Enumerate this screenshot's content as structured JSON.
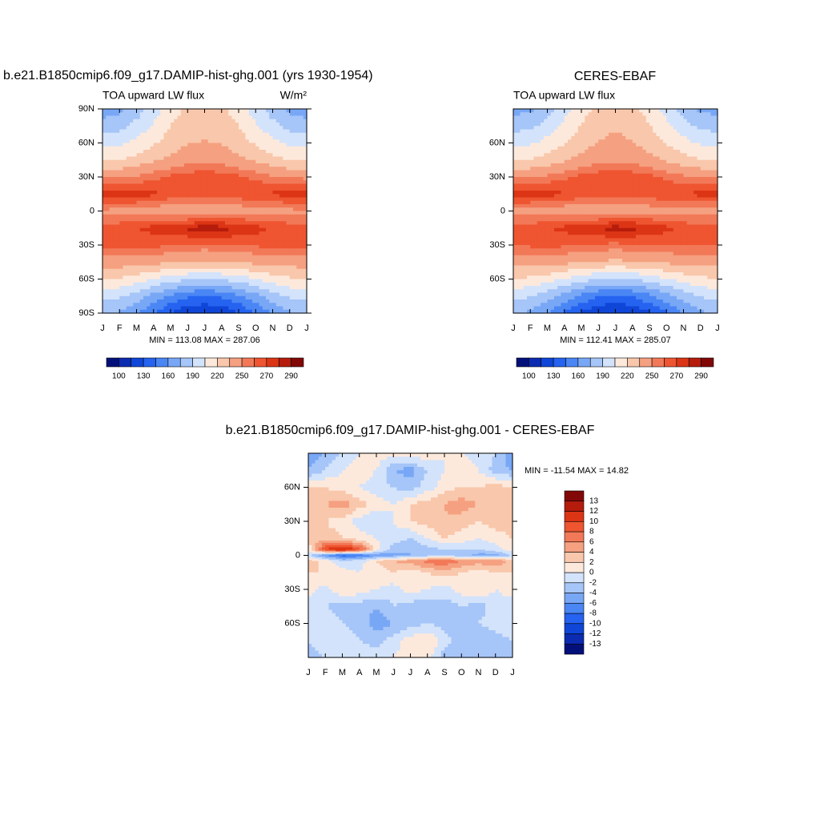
{
  "chart_data": [
    {
      "type": "contour",
      "title": "b.e21.B1850cmip6.f09_g17.DAMIP-hist-ghg.001 (yrs 1930-1954)",
      "subtitle": "TOA upward LW flux",
      "units": "W/m²",
      "stats": "MIN = 113.08 MAX = 287.06",
      "xlim": [
        0,
        12
      ],
      "x": [
        0,
        1,
        2,
        3,
        4,
        5,
        6,
        7,
        8,
        9,
        10,
        11,
        12
      ],
      "xticks": [
        {
          "value": 0,
          "label": "J"
        },
        {
          "value": 1,
          "label": "F"
        },
        {
          "value": 2,
          "label": "M"
        },
        {
          "value": 3,
          "label": "A"
        },
        {
          "value": 4,
          "label": "M"
        },
        {
          "value": 5,
          "label": "J"
        },
        {
          "value": 6,
          "label": "J"
        },
        {
          "value": 7,
          "label": "A"
        },
        {
          "value": 8,
          "label": "S"
        },
        {
          "value": 9,
          "label": "O"
        },
        {
          "value": 10,
          "label": "N"
        },
        {
          "value": 11,
          "label": "D"
        },
        {
          "value": 12,
          "label": "J"
        }
      ],
      "ylim": [
        -90,
        90
      ],
      "yticks": [
        {
          "value": 90,
          "label": "90N"
        },
        {
          "value": 60,
          "label": "60N"
        },
        {
          "value": 30,
          "label": "30N"
        },
        0,
        {
          "value": -30,
          "label": "30S"
        },
        {
          "value": -60,
          "label": "60S"
        },
        {
          "value": -90,
          "label": "90S"
        }
      ],
      "y": [
        90,
        75,
        60,
        45,
        30,
        15,
        0,
        -15,
        -30,
        -45,
        -60,
        -75,
        -90
      ],
      "z": [
        [
          167,
          171,
          182,
          197,
          212,
          223,
          227,
          223,
          212,
          197,
          182,
          171,
          167
        ],
        [
          182,
          185,
          195,
          207,
          220,
          229,
          232,
          229,
          220,
          207,
          195,
          185,
          182
        ],
        [
          200,
          202,
          209,
          218,
          227,
          234,
          236,
          234,
          227,
          218,
          209,
          202,
          200
        ],
        [
          218,
          220,
          225,
          232,
          239,
          244,
          246,
          244,
          239,
          232,
          225,
          220,
          218
        ],
        [
          247,
          248,
          252,
          257,
          262,
          266,
          267,
          266,
          262,
          257,
          252,
          248,
          247
        ],
        [
          276,
          277,
          276,
          272,
          268,
          265,
          264,
          265,
          267,
          270,
          272,
          274,
          276
        ],
        [
          248,
          246,
          244,
          242,
          240,
          238,
          238,
          240,
          242,
          244,
          246,
          247,
          248
        ],
        [
          264,
          266,
          270,
          274,
          278,
          282,
          287,
          284,
          279,
          274,
          268,
          265,
          264
        ],
        [
          262,
          263,
          264,
          263,
          261,
          258,
          257,
          258,
          260,
          262,
          263,
          263,
          262
        ],
        [
          242,
          243,
          242,
          240,
          237,
          234,
          233,
          234,
          236,
          239,
          241,
          242,
          242
        ],
        [
          220,
          218,
          213,
          205,
          197,
          192,
          190,
          192,
          197,
          205,
          213,
          218,
          220
        ],
        [
          195,
          192,
          183,
          170,
          158,
          148,
          145,
          148,
          158,
          170,
          183,
          192,
          195
        ],
        [
          177,
          173,
          161,
          145,
          129,
          117,
          113,
          117,
          129,
          145,
          161,
          173,
          177
        ]
      ],
      "colorbar": {
        "orientation": "horizontal",
        "levels": [
          100,
          115,
          130,
          145,
          160,
          175,
          190,
          205,
          220,
          235,
          250,
          260,
          270,
          280,
          290
        ],
        "ticks": [
          100,
          130,
          160,
          190,
          220,
          250,
          270,
          290
        ],
        "colors": [
          "#04107a",
          "#0b2bb0",
          "#0f46d8",
          "#2563f0",
          "#4a86f4",
          "#78a7f6",
          "#a6c5f8",
          "#d3e3fb",
          "#fde9dc",
          "#f9c7ab",
          "#f5a080",
          "#f27958",
          "#ee5530",
          "#dc3515",
          "#b51c0c",
          "#820808"
        ]
      }
    },
    {
      "type": "contour",
      "title": "CERES-EBAF",
      "subtitle": "TOA upward LW flux",
      "stats": "MIN = 112.41 MAX = 285.07",
      "xlim": [
        0,
        12
      ],
      "x": [
        0,
        1,
        2,
        3,
        4,
        5,
        6,
        7,
        8,
        9,
        10,
        11,
        12
      ],
      "xticks": [
        {
          "value": 0,
          "label": "J"
        },
        {
          "value": 1,
          "label": "F"
        },
        {
          "value": 2,
          "label": "M"
        },
        {
          "value": 3,
          "label": "A"
        },
        {
          "value": 4,
          "label": "M"
        },
        {
          "value": 5,
          "label": "J"
        },
        {
          "value": 6,
          "label": "J"
        },
        {
          "value": 7,
          "label": "A"
        },
        {
          "value": 8,
          "label": "S"
        },
        {
          "value": 9,
          "label": "O"
        },
        {
          "value": 10,
          "label": "N"
        },
        {
          "value": 11,
          "label": "D"
        },
        {
          "value": 12,
          "label": "J"
        }
      ],
      "ylim": [
        -90,
        90
      ],
      "yticks": [
        {
          "value": 60,
          "label": "60N"
        },
        {
          "value": 30,
          "label": "30N"
        },
        0,
        {
          "value": -30,
          "label": "30S"
        },
        {
          "value": -60,
          "label": "60S"
        }
      ],
      "y": [
        90,
        75,
        60,
        45,
        30,
        15,
        0,
        -15,
        -30,
        -45,
        -60,
        -75,
        -90
      ],
      "z": [
        [
          170,
          172,
          184,
          200,
          214,
          224,
          228,
          224,
          214,
          200,
          184,
          172,
          170
        ],
        [
          184,
          186,
          196,
          208,
          221,
          230,
          234,
          230,
          221,
          208,
          196,
          186,
          184
        ],
        [
          201,
          203,
          210,
          219,
          228,
          236,
          238,
          236,
          228,
          219,
          210,
          203,
          201
        ],
        [
          219,
          221,
          226,
          233,
          240,
          245,
          247,
          245,
          240,
          233,
          226,
          221,
          219
        ],
        [
          248,
          249,
          253,
          258,
          263,
          267,
          268,
          267,
          263,
          258,
          253,
          249,
          248
        ],
        [
          274,
          275,
          274,
          271,
          267,
          264,
          263,
          264,
          266,
          269,
          271,
          273,
          274
        ],
        [
          246,
          245,
          243,
          241,
          240,
          239,
          239,
          241,
          243,
          244,
          245,
          246,
          246
        ],
        [
          263,
          265,
          269,
          273,
          277,
          281,
          285,
          283,
          278,
          273,
          267,
          264,
          263
        ],
        [
          261,
          262,
          263,
          262,
          260,
          258,
          257,
          258,
          259,
          261,
          262,
          262,
          261
        ],
        [
          241,
          242,
          241,
          239,
          236,
          233,
          232,
          233,
          235,
          238,
          240,
          241,
          241
        ],
        [
          219,
          217,
          212,
          204,
          196,
          191,
          189,
          191,
          196,
          204,
          212,
          217,
          219
        ],
        [
          194,
          191,
          182,
          169,
          157,
          147,
          144,
          147,
          157,
          169,
          182,
          191,
          194
        ],
        [
          176,
          172,
          160,
          144,
          128,
          116,
          112,
          116,
          128,
          144,
          160,
          172,
          176
        ]
      ],
      "colorbar": {
        "orientation": "horizontal",
        "levels": [
          100,
          115,
          130,
          145,
          160,
          175,
          190,
          205,
          220,
          235,
          250,
          260,
          270,
          280,
          290
        ],
        "ticks": [
          100,
          130,
          160,
          190,
          220,
          250,
          270,
          290
        ],
        "colors": [
          "#04107a",
          "#0b2bb0",
          "#0f46d8",
          "#2563f0",
          "#4a86f4",
          "#78a7f6",
          "#a6c5f8",
          "#d3e3fb",
          "#fde9dc",
          "#f9c7ab",
          "#f5a080",
          "#f27958",
          "#ee5530",
          "#dc3515",
          "#b51c0c",
          "#820808"
        ]
      }
    },
    {
      "type": "contour",
      "title": "b.e21.B1850cmip6.f09_g17.DAMIP-hist-ghg.001 - CERES-EBAF",
      "stats": "MIN = -11.54 MAX =  14.82",
      "xlim": [
        0,
        12
      ],
      "x": [
        0,
        1,
        2,
        3,
        4,
        5,
        6,
        7,
        8,
        9,
        10,
        11,
        12
      ],
      "xticks": [
        {
          "value": 0,
          "label": "J"
        },
        {
          "value": 1,
          "label": "F"
        },
        {
          "value": 2,
          "label": "M"
        },
        {
          "value": 3,
          "label": "A"
        },
        {
          "value": 4,
          "label": "M"
        },
        {
          "value": 5,
          "label": "J"
        },
        {
          "value": 6,
          "label": "J"
        },
        {
          "value": 7,
          "label": "A"
        },
        {
          "value": 8,
          "label": "S"
        },
        {
          "value": 9,
          "label": "O"
        },
        {
          "value": 10,
          "label": "N"
        },
        {
          "value": 11,
          "label": "D"
        },
        {
          "value": 12,
          "label": "J"
        }
      ],
      "ylim": [
        -90,
        90
      ],
      "yticks": [
        {
          "value": 60,
          "label": "60N"
        },
        {
          "value": 30,
          "label": "30N"
        },
        0,
        {
          "value": -30,
          "label": "30S"
        },
        {
          "value": -60,
          "label": "60S"
        }
      ],
      "y": [
        90,
        75,
        60,
        45,
        30,
        15,
        5,
        0,
        -5,
        -15,
        -30,
        -45,
        -60,
        -75,
        -90
      ],
      "z": [
        [
          -6,
          -4,
          -2,
          0,
          1,
          1,
          2,
          1,
          0,
          0,
          -1,
          -2,
          -6
        ],
        [
          -4,
          -2,
          0,
          1,
          0,
          -4,
          -5,
          -2,
          0,
          1,
          0,
          -3,
          -4
        ],
        [
          2,
          2,
          1,
          0,
          -1,
          -2,
          -3,
          -1,
          1,
          2,
          2,
          3,
          2
        ],
        [
          4,
          4,
          5,
          3,
          1,
          0,
          2,
          3,
          4,
          5,
          4,
          3,
          4
        ],
        [
          3,
          2,
          1,
          -1,
          -2,
          0,
          2,
          3,
          4,
          3,
          2,
          3,
          3
        ],
        [
          2,
          3,
          2,
          1,
          0,
          -1,
          -2,
          0,
          2,
          1,
          0,
          1,
          2
        ],
        [
          1,
          10,
          13,
          9,
          1,
          -3,
          -4,
          -3,
          -2,
          -2,
          -2,
          -1,
          1
        ],
        [
          -2,
          -6,
          -9,
          -8,
          -6,
          -5,
          -4,
          -3,
          -3,
          -3,
          -5,
          -5,
          -2
        ],
        [
          3,
          1,
          -2,
          -1,
          2,
          4,
          5,
          7,
          8,
          6,
          5,
          6,
          3
        ],
        [
          2,
          2,
          1,
          0,
          1,
          2,
          1,
          2,
          3,
          2,
          1,
          2,
          2
        ],
        [
          1,
          -1,
          2,
          1,
          0,
          -1,
          1,
          0,
          -1,
          1,
          2,
          0,
          1
        ],
        [
          -1,
          -2,
          -3,
          -3,
          -4,
          -2,
          -3,
          -4,
          -3,
          -2,
          -3,
          -1,
          -1
        ],
        [
          0,
          -1,
          -2,
          -3,
          -5,
          -4,
          -3,
          -2,
          -3,
          -4,
          -2,
          -1,
          0
        ],
        [
          -2,
          -1,
          0,
          -2,
          -3,
          -1,
          1,
          2,
          -1,
          -3,
          -4,
          -3,
          -2
        ],
        [
          -3,
          -2,
          -1,
          0,
          -1,
          0,
          1,
          1,
          -3,
          -4,
          -3,
          -2,
          -3
        ]
      ],
      "colorbar": {
        "orientation": "vertical",
        "levels": [
          -13,
          -12,
          -10,
          -8,
          -6,
          -4,
          -2,
          0,
          2,
          4,
          6,
          8,
          10,
          12,
          13
        ],
        "colors": [
          "#04107a",
          "#0b2bb0",
          "#0f46d8",
          "#2563f0",
          "#4a86f4",
          "#78a7f6",
          "#a6c5f8",
          "#d3e3fb",
          "#fde9dc",
          "#f9c7ab",
          "#f5a080",
          "#f27958",
          "#ee5530",
          "#dc3515",
          "#b51c0c",
          "#820808"
        ]
      }
    }
  ]
}
